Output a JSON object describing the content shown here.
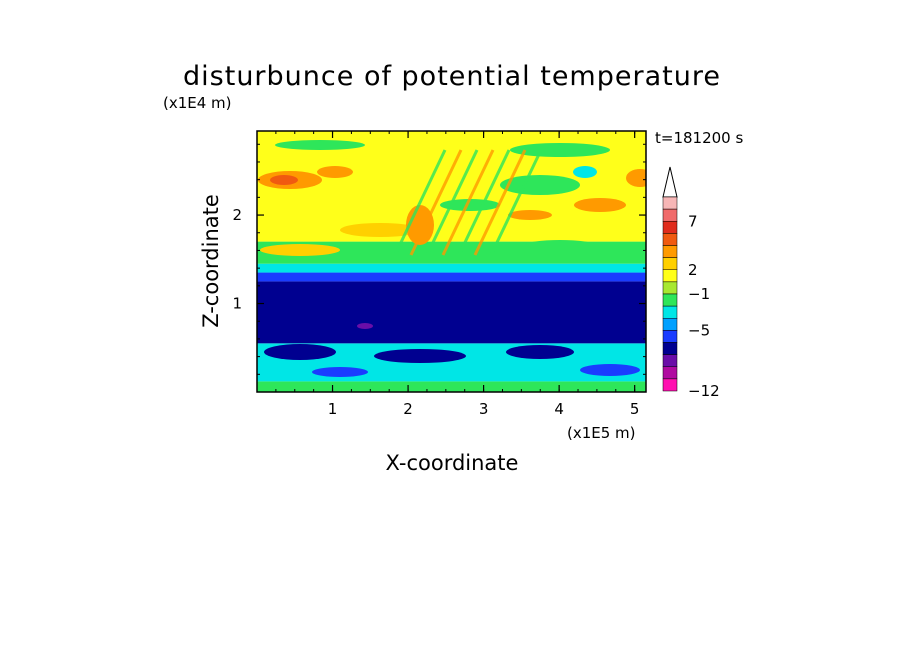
{
  "chart_data": {
    "type": "heatmap",
    "title": "disturbunce of potential temperature",
    "xlabel": "X-coordinate",
    "ylabel": "Z-coordinate",
    "x_unit": "(x1E5 m)",
    "y_unit": "(x1E4 m)",
    "time_label": "t=181200 s",
    "xlim": [
      0,
      5.15
    ],
    "ylim": [
      0,
      2.95
    ],
    "x_ticks": [
      1,
      2,
      3,
      4,
      5
    ],
    "y_ticks": [
      1,
      2
    ],
    "colorbar": {
      "labels": [
        "7",
        "2",
        "−1",
        "−5",
        "−12"
      ],
      "colors": [
        "#f7b6b6",
        "#f06a6a",
        "#e02b1c",
        "#f05a10",
        "#ff9a00",
        "#ffd000",
        "#ffff1a",
        "#a8e830",
        "#2ee65a",
        "#00e6e6",
        "#00a0ff",
        "#1a3cff",
        "#000090",
        "#6a0ea8",
        "#b00aa0",
        "#ff10b0"
      ],
      "extend": "max"
    },
    "bands": [
      {
        "z_bottom": 0.0,
        "z_top": 0.12,
        "level": "green"
      },
      {
        "z_bottom": 0.12,
        "z_top": 0.55,
        "level": "cyan"
      },
      {
        "z_bottom": 0.55,
        "z_top": 1.25,
        "level": "navy"
      },
      {
        "z_bottom": 1.25,
        "z_top": 1.35,
        "level": "blue"
      },
      {
        "z_bottom": 1.35,
        "z_top": 1.45,
        "level": "cyan"
      },
      {
        "z_bottom": 1.45,
        "z_top": 1.7,
        "level": "green"
      },
      {
        "z_bottom": 1.7,
        "z_top": 2.95,
        "level": "yellow"
      }
    ]
  }
}
